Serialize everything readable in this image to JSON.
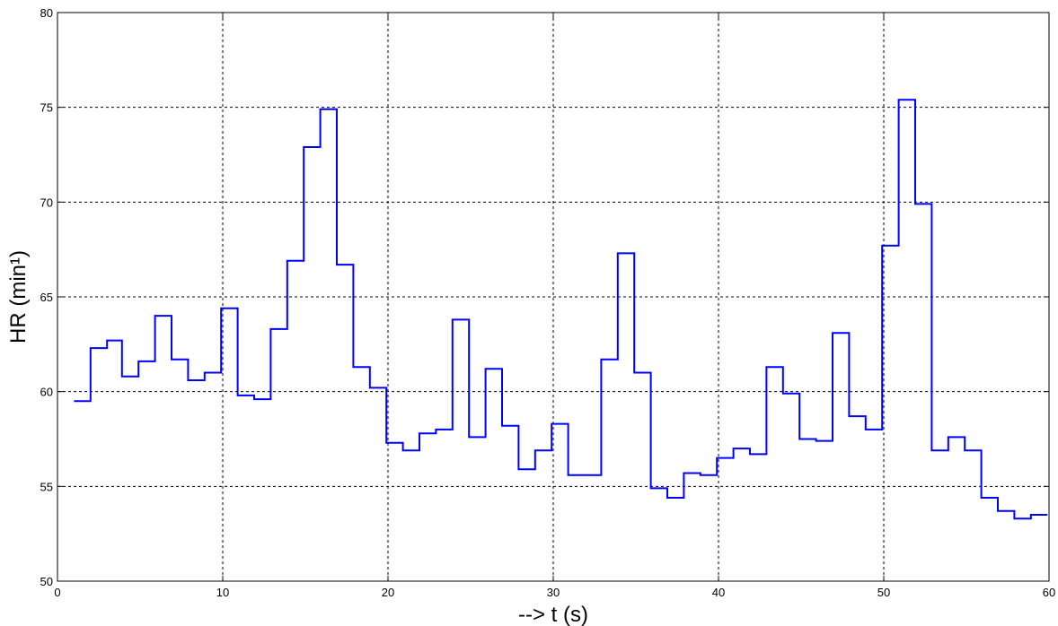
{
  "chart_data": {
    "type": "line",
    "step": "post",
    "title": "",
    "xlabel": "--> t (s)",
    "ylabel": "HR  (min¹)",
    "xlim": [
      0,
      60
    ],
    "ylim": [
      50,
      80
    ],
    "xticks": [
      "0",
      "10",
      "20",
      "30",
      "40",
      "50",
      "60"
    ],
    "yticks": [
      "50",
      "55",
      "60",
      "65",
      "70",
      "75",
      "80"
    ],
    "grid": true,
    "legend": "none",
    "colors": {
      "line": "#0000ff",
      "grid": "#000000",
      "axes": "#000000"
    },
    "series": [
      {
        "x": [
          1.0,
          2.0,
          3.0,
          3.9,
          4.9,
          5.9,
          6.9,
          7.9,
          8.9,
          9.9,
          10.9,
          11.9,
          12.9,
          13.9,
          14.9,
          15.9,
          16.9,
          17.9,
          18.9,
          19.9,
          20.9,
          21.9,
          22.9,
          23.9,
          24.9,
          25.9,
          26.9,
          27.9,
          28.9,
          29.9,
          30.9,
          31.9,
          32.9,
          33.9,
          34.9,
          35.9,
          36.9,
          37.9,
          38.9,
          39.9,
          40.9,
          41.9,
          42.9,
          43.9,
          44.9,
          45.9,
          46.9,
          47.9,
          48.9,
          49.9,
          50.9,
          51.9,
          52.9,
          53.9,
          54.9,
          55.9,
          56.9,
          57.9,
          58.9,
          59.9
        ],
        "y": [
          59.5,
          62.3,
          62.7,
          60.8,
          61.6,
          64.0,
          61.7,
          60.6,
          61.0,
          64.4,
          59.8,
          59.6,
          63.3,
          66.9,
          72.9,
          74.9,
          66.7,
          61.3,
          60.2,
          57.3,
          56.9,
          57.8,
          58.0,
          63.8,
          57.6,
          61.2,
          58.2,
          55.9,
          56.9,
          58.3,
          55.6,
          55.6,
          61.7,
          67.3,
          61.0,
          54.9,
          54.4,
          55.7,
          55.6,
          56.5,
          57.0,
          56.7,
          61.3,
          59.9,
          57.5,
          57.4,
          63.1,
          58.7,
          58.0,
          67.7,
          75.4,
          69.9,
          56.9,
          57.6,
          56.9,
          54.4,
          53.7,
          53.3,
          53.5,
          53.5
        ]
      }
    ]
  }
}
